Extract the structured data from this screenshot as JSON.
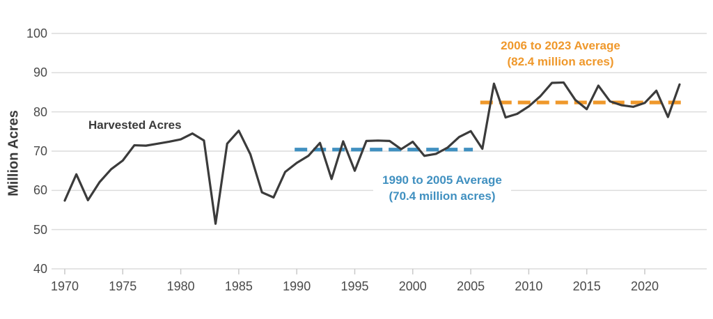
{
  "chart_data": {
    "type": "line",
    "series_label": "Harvested Acres",
    "ylabel": "Million Acres",
    "ylim": [
      40,
      100
    ],
    "y_ticks": [
      40,
      50,
      60,
      70,
      80,
      90,
      100
    ],
    "x_ticks": [
      1970,
      1975,
      1980,
      1985,
      1990,
      1995,
      2000,
      2005,
      2010,
      2015,
      2020
    ],
    "grid": "horizontal-gridlines-on",
    "legend_position": "none",
    "line_color": "#3b3b3b",
    "gridline_color": "#dcdcdc",
    "tick_color": "#c9c9c9",
    "axis_text_color": "#4a4a4a",
    "x": [
      1970,
      1971,
      1972,
      1973,
      1974,
      1975,
      1976,
      1977,
      1978,
      1979,
      1980,
      1981,
      1982,
      1983,
      1984,
      1985,
      1986,
      1987,
      1988,
      1989,
      1990,
      1991,
      1992,
      1993,
      1994,
      1995,
      1996,
      1997,
      1998,
      1999,
      2000,
      2001,
      2002,
      2003,
      2004,
      2005,
      2006,
      2007,
      2008,
      2009,
      2010,
      2011,
      2012,
      2013,
      2014,
      2015,
      2016,
      2017,
      2018,
      2019,
      2020,
      2021,
      2022,
      2023
    ],
    "values": [
      57.4,
      64.1,
      57.5,
      62.1,
      65.4,
      67.6,
      71.5,
      71.4,
      71.9,
      72.4,
      73.0,
      74.5,
      72.7,
      51.5,
      71.9,
      75.2,
      69.2,
      59.5,
      58.2,
      64.7,
      67.0,
      68.8,
      72.1,
      62.9,
      72.5,
      65.0,
      72.6,
      72.7,
      72.6,
      70.5,
      72.4,
      68.8,
      69.3,
      70.9,
      73.6,
      75.1,
      70.6,
      87.2,
      78.6,
      79.5,
      81.4,
      84.0,
      87.4,
      87.5,
      83.1,
      80.7,
      86.7,
      82.7,
      81.7,
      81.3,
      82.3,
      85.4,
      78.7,
      87.0
    ],
    "annotations": [
      {
        "name": "avg-1990-2005",
        "lines": [
          "1990 to 2005 Average",
          "(70.4 million acres)"
        ],
        "value": 70.4,
        "x_start": 1990,
        "x_end": 2005,
        "color": "#4090c0"
      },
      {
        "name": "avg-2006-2023",
        "lines": [
          "2006 to 2023 Average",
          "(82.4 million acres)"
        ],
        "value": 82.4,
        "x_start": 2006,
        "x_end": 2023,
        "color": "#ef982b"
      }
    ]
  }
}
